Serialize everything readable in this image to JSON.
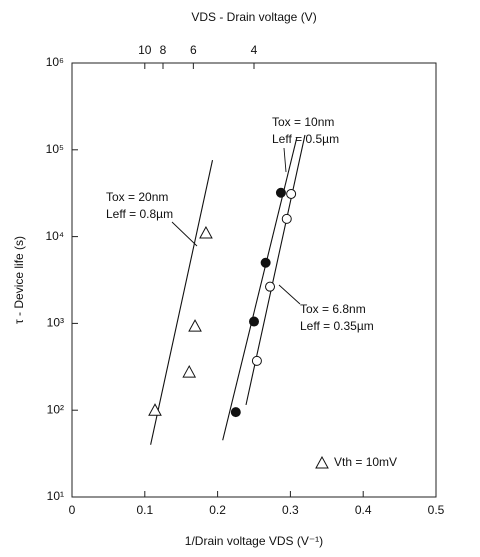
{
  "chart_data": {
    "type": "scatter",
    "xlabel": "1/Drain voltage VDS (V⁻¹)",
    "x2label": "VDS - Drain voltage (V)",
    "ylabel": "τ - Device life (s)",
    "xlim": [
      0,
      0.5
    ],
    "xticks": [
      0,
      0.1,
      0.2,
      0.3,
      0.4,
      0.5
    ],
    "x2ticks": [
      {
        "value": 0.1,
        "label": "10"
      },
      {
        "value": 0.125,
        "label": "8"
      },
      {
        "value": 0.1667,
        "label": "6"
      },
      {
        "value": 0.25,
        "label": "4"
      }
    ],
    "ylim": [
      10,
      1000000
    ],
    "yticks": [
      {
        "value": 10,
        "label": "10¹"
      },
      {
        "value": 100,
        "label": "10²"
      },
      {
        "value": 1000,
        "label": "10³"
      },
      {
        "value": 10000,
        "label": "10⁴"
      },
      {
        "value": 100000,
        "label": "10⁵"
      },
      {
        "value": 1000000,
        "label": "10⁶"
      }
    ],
    "log_y": true,
    "series": [
      {
        "marker": "triangle",
        "color": "#111111",
        "x": [
          0.114,
          0.161,
          0.169,
          0.184
        ],
        "values": [
          100,
          275,
          930,
          11000
        ],
        "fit_x": [
          0.108,
          0.193
        ],
        "fit_values": [
          40,
          76000
        ]
      },
      {
        "marker": "filled-circle",
        "color": "#111111",
        "x": [
          0.225,
          0.25,
          0.266,
          0.287
        ],
        "values": [
          95,
          1050,
          5000,
          32000
        ],
        "fit_x": [
          0.207,
          0.309
        ],
        "fit_values": [
          45,
          140000
        ]
      },
      {
        "marker": "open-circle",
        "color": "#111111",
        "x": [
          0.254,
          0.272,
          0.295,
          0.301
        ],
        "values": [
          370,
          2650,
          16000,
          31000
        ],
        "fit_x": [
          0.239,
          0.32
        ],
        "fit_values": [
          115,
          148000
        ]
      }
    ],
    "annotations": [
      "Tox = 10nm",
      "Leff = 0.5µm",
      "Tox = 20nm",
      "Leff = 0.8µm",
      "Tox = 6.8nm",
      "Leff = 0.35µm",
      "Vth = 10mV"
    ]
  }
}
